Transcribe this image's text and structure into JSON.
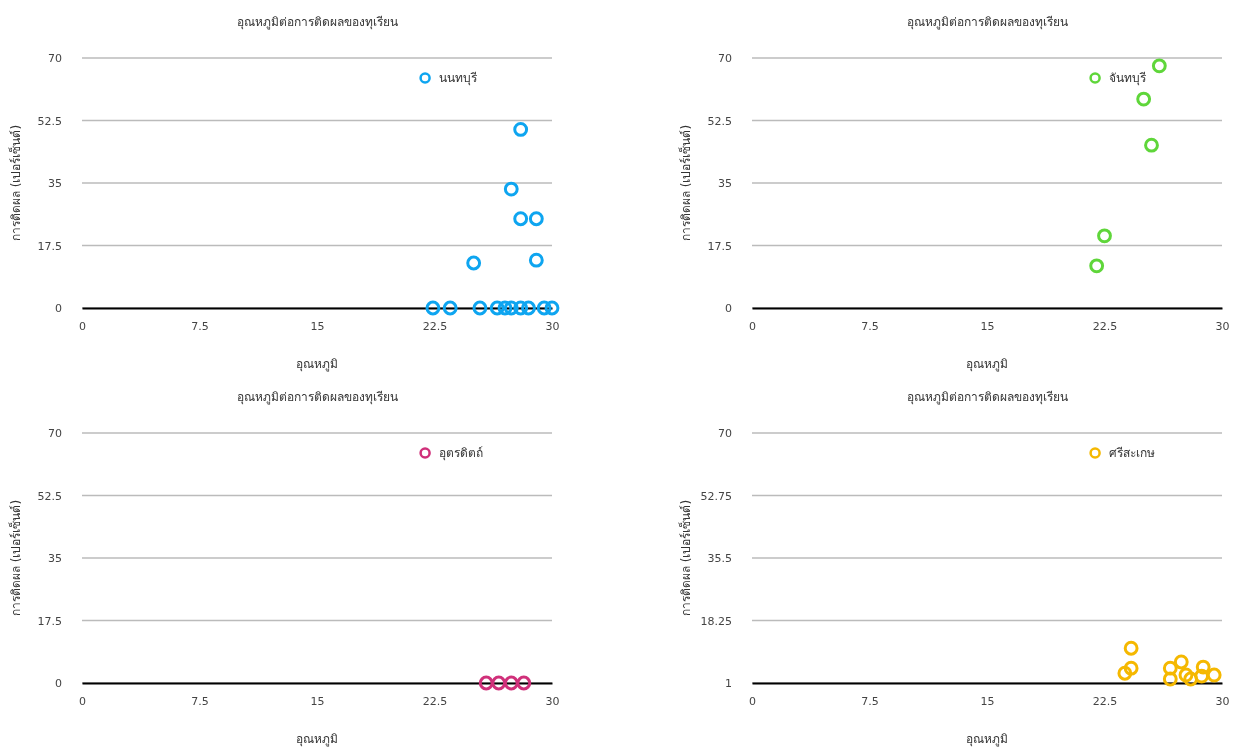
{
  "chart_data": [
    {
      "type": "scatter",
      "title": "อุณหภูมิต่อการติดผลของทุเรียน",
      "xlabel": "อุณหภูมิ",
      "ylabel": "การติดผล (เปอร์เซ็นต์)",
      "xlim": [
        0,
        30
      ],
      "xticks": [
        0,
        7.5,
        15,
        22.5,
        30
      ],
      "ylim": [
        0,
        70
      ],
      "yticks": [
        0,
        17.5,
        35,
        52.5,
        70
      ],
      "grid": "y",
      "legend": "top",
      "marker": "circle",
      "series": [
        {
          "name": "นนทบุรี",
          "color": "#0ea5f0",
          "x": [
            28,
            27.4,
            28,
            29,
            25,
            29,
            22.4,
            23.5,
            25.4,
            26.5,
            27,
            27.4,
            28,
            28.5,
            29.5,
            30
          ],
          "values": [
            50,
            33.3,
            25,
            25,
            12.6,
            13.4,
            0,
            0,
            0,
            0,
            0,
            0,
            0,
            0,
            0,
            0
          ]
        }
      ]
    },
    {
      "type": "scatter",
      "title": "อุณหภูมิต่อการติดผลของทุเรียน",
      "xlabel": "อุณหภูมิ",
      "ylabel": "การติดผล (เปอร์เซ็นต์)",
      "xlim": [
        0,
        30
      ],
      "xticks": [
        0,
        7.5,
        15,
        22.5,
        30
      ],
      "ylim": [
        0,
        70
      ],
      "yticks": [
        0,
        17.5,
        35,
        52.5,
        70
      ],
      "grid": "y",
      "legend": "top",
      "marker": "circle",
      "series": [
        {
          "name": "จันทบุรี",
          "color": "#5fd63a",
          "x": [
            26,
            25,
            25.5,
            22.5,
            22
          ],
          "values": [
            67.8,
            58.5,
            45.6,
            20.2,
            11.8
          ]
        }
      ]
    },
    {
      "type": "scatter",
      "title": "อุณหภูมิต่อการติดผลของทุเรียน",
      "xlabel": "อุณหภูมิ",
      "ylabel": "การติดผล (เปอร์เซ็นต์)",
      "xlim": [
        0,
        30
      ],
      "xticks": [
        0,
        7.5,
        15,
        22.5,
        30
      ],
      "ylim": [
        0,
        70
      ],
      "yticks": [
        0,
        17.5,
        35,
        52.5,
        70
      ],
      "grid": "y",
      "legend": "top",
      "marker": "circle",
      "series": [
        {
          "name": "อุตรดิตถ์",
          "color": "#d0307a",
          "x": [
            25.8,
            26.6,
            27.4,
            28.2
          ],
          "values": [
            0,
            0,
            0,
            0
          ]
        }
      ]
    },
    {
      "type": "scatter",
      "title": "อุณหภูมิต่อการติดผลของทุเรียน",
      "xlabel": "อุณหภูมิ",
      "ylabel": "การติดผล (เปอร์เซ็นต์)",
      "xlim": [
        0,
        30
      ],
      "xticks": [
        0,
        7.5,
        15,
        22.5,
        30
      ],
      "ylim": [
        1,
        70
      ],
      "yticks": [
        1,
        18.25,
        35.5,
        52.75,
        70
      ],
      "grid": "y",
      "legend": "top",
      "marker": "circle",
      "series": [
        {
          "name": "ศรีสะเกษ",
          "color": "#f5b800",
          "x": [
            24.2,
            24.2,
            23.8,
            26.7,
            26.7,
            27.4,
            27.7,
            28,
            28.8,
            28.7,
            29.5
          ],
          "values": [
            10.6,
            5.1,
            3.7,
            5.1,
            2.1,
            6.8,
            3.2,
            2.1,
            5.4,
            2.9,
            3.2
          ]
        }
      ]
    }
  ]
}
